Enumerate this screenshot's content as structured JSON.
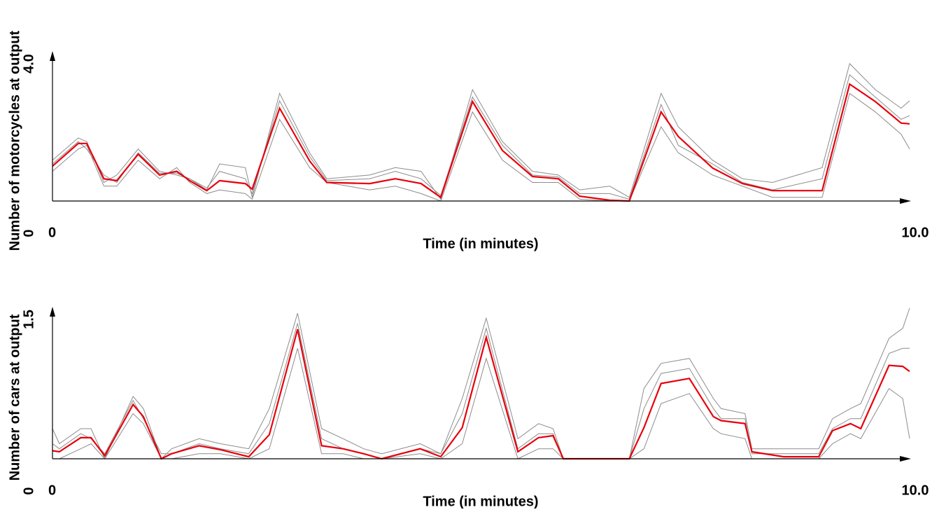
{
  "chart_data": [
    {
      "type": "line",
      "xlabel": "Time (in minutes)",
      "ylabel": "Number of motorcycles at output",
      "xlim": [
        0,
        10
      ],
      "ylim": [
        0,
        4
      ],
      "xticks": [
        0,
        {
          "value": 10,
          "label": "10.0"
        }
      ],
      "yticks": [
        0,
        {
          "value": 4,
          "label": "4.0"
        }
      ],
      "x": [
        0,
        0.3,
        0.4,
        0.6,
        0.75,
        1.0,
        1.25,
        1.45,
        1.6,
        1.8,
        1.95,
        2.25,
        2.33,
        2.65,
        3.0,
        3.2,
        3.7,
        4.0,
        4.3,
        4.53,
        4.9,
        5.25,
        5.6,
        5.9,
        6.15,
        6.5,
        6.73,
        7.1,
        7.3,
        7.7,
        8.05,
        8.4,
        8.98,
        9.3,
        9.6,
        9.9,
        10
      ],
      "series": [
        {
          "color": "#8c8c8c",
          "values": [
            1.1,
            1.7,
            1.6,
            0.5,
            0.7,
            1.4,
            0.8,
            0.7,
            0.6,
            0.3,
            1.0,
            0.9,
            0.1,
            2.9,
            1.3,
            0.6,
            0.7,
            0.9,
            0.8,
            0.05,
            3.0,
            1.6,
            0.8,
            0.7,
            0.3,
            0.4,
            0.1,
            2.9,
            2.0,
            1.1,
            0.6,
            0.5,
            0.9,
            3.7,
            3.0,
            2.5,
            2.7
          ]
        },
        {
          "color": "#8c8c8c",
          "values": [
            0.8,
            1.4,
            1.5,
            0.4,
            0.4,
            1.1,
            0.6,
            0.9,
            0.5,
            0.2,
            0.3,
            0.2,
            0.05,
            2.2,
            0.9,
            0.5,
            0.3,
            0.4,
            0.2,
            0,
            2.4,
            1.1,
            0.5,
            0.5,
            0.05,
            0,
            0,
            2.0,
            1.3,
            0.7,
            0.4,
            0.1,
            0.1,
            2.9,
            2.4,
            1.8,
            1.4
          ]
        },
        {
          "color": "#8c8c8c",
          "values": [
            1.0,
            1.6,
            1.4,
            0.7,
            0.5,
            1.3,
            0.75,
            0.75,
            0.6,
            0.35,
            0.8,
            0.6,
            0.2,
            2.7,
            1.2,
            0.55,
            0.6,
            0.8,
            0.6,
            0.15,
            2.8,
            1.5,
            0.7,
            0.65,
            0.2,
            0.2,
            0.05,
            2.6,
            1.5,
            1.0,
            0.5,
            0.3,
            0.6,
            3.4,
            2.8,
            2.2,
            2.3
          ]
        },
        {
          "color": "#e8000b",
          "values": [
            0.94,
            1.55,
            1.55,
            0.6,
            0.55,
            1.26,
            0.7,
            0.8,
            0.55,
            0.28,
            0.55,
            0.47,
            0.32,
            2.5,
            1.08,
            0.5,
            0.47,
            0.6,
            0.47,
            0.1,
            2.68,
            1.36,
            0.66,
            0.6,
            0.13,
            0.02,
            0,
            2.4,
            1.74,
            0.89,
            0.47,
            0.28,
            0.28,
            3.15,
            2.68,
            2.1,
            2.08
          ]
        }
      ]
    },
    {
      "type": "line",
      "xlabel": "Time (in minutes)",
      "ylabel": "Number of cars at output",
      "xlim": [
        0,
        10
      ],
      "ylim": [
        0,
        1.5
      ],
      "xticks": [
        0,
        {
          "value": 10,
          "label": "10.0"
        }
      ],
      "yticks": [
        0,
        1.5
      ],
      "x": [
        0,
        0.08,
        0.33,
        0.45,
        0.61,
        0.94,
        1.06,
        1.27,
        1.39,
        1.71,
        1.96,
        2.29,
        2.53,
        2.86,
        3.14,
        3.39,
        3.63,
        3.84,
        4.29,
        4.53,
        4.78,
        5.06,
        5.43,
        5.67,
        5.84,
        5.96,
        6.73,
        6.9,
        7.1,
        7.43,
        7.71,
        7.8,
        8.08,
        8.16,
        8.53,
        8.94,
        9.1,
        9.31,
        9.43,
        9.76,
        9.92,
        10
      ],
      "series": [
        {
          "color": "#8c8c8c",
          "values": [
            0.3,
            0.15,
            0.3,
            0.3,
            0,
            0.62,
            0.5,
            0,
            0.1,
            0.2,
            0.15,
            0.1,
            0.5,
            1.45,
            0.3,
            0.2,
            0.1,
            0.05,
            0.15,
            0.05,
            0.6,
            1.4,
            0.2,
            0.35,
            0.3,
            0,
            0,
            0.7,
            0.95,
            1.0,
            0.6,
            0.5,
            0.45,
            0.1,
            0.1,
            0.1,
            0.4,
            0.5,
            0.55,
            1.2,
            1.3,
            1.5
          ]
        },
        {
          "color": "#8c8c8c",
          "values": [
            0,
            0,
            0.1,
            0.15,
            0,
            0.45,
            0.35,
            0,
            0,
            0.05,
            0.05,
            0,
            0.1,
            1.1,
            0.05,
            0.05,
            0,
            0,
            0.05,
            0,
            0.15,
            1.0,
            0,
            0.1,
            0.1,
            0,
            0,
            0.1,
            0.55,
            0.65,
            0.3,
            0.25,
            0.2,
            0,
            0,
            0,
            0.15,
            0.25,
            0.2,
            0.7,
            0.6,
            0.2
          ]
        },
        {
          "color": "#8c8c8c",
          "values": [
            0.15,
            0.1,
            0.25,
            0.2,
            0.05,
            0.58,
            0.4,
            0.05,
            0.05,
            0.15,
            0.1,
            0.05,
            0.35,
            1.35,
            0.2,
            0.1,
            0.05,
            0,
            0.1,
            0.05,
            0.45,
            1.3,
            0.1,
            0.25,
            0.25,
            0,
            0,
            0.5,
            0.85,
            0.9,
            0.5,
            0.4,
            0.4,
            0.05,
            0.05,
            0.05,
            0.3,
            0.4,
            0.4,
            1.05,
            1.1,
            1.1
          ]
        },
        {
          "color": "#e8000b",
          "values": [
            0.08,
            0.07,
            0.21,
            0.21,
            0.03,
            0.54,
            0.42,
            0,
            0.05,
            0.13,
            0.09,
            0.02,
            0.24,
            1.29,
            0.13,
            0.1,
            0.05,
            0,
            0.1,
            0.02,
            0.31,
            1.21,
            0.07,
            0.21,
            0.23,
            0,
            0,
            0.31,
            0.75,
            0.8,
            0.42,
            0.38,
            0.35,
            0.07,
            0.02,
            0.02,
            0.28,
            0.35,
            0.3,
            0.93,
            0.92,
            0.87
          ]
        }
      ]
    }
  ]
}
